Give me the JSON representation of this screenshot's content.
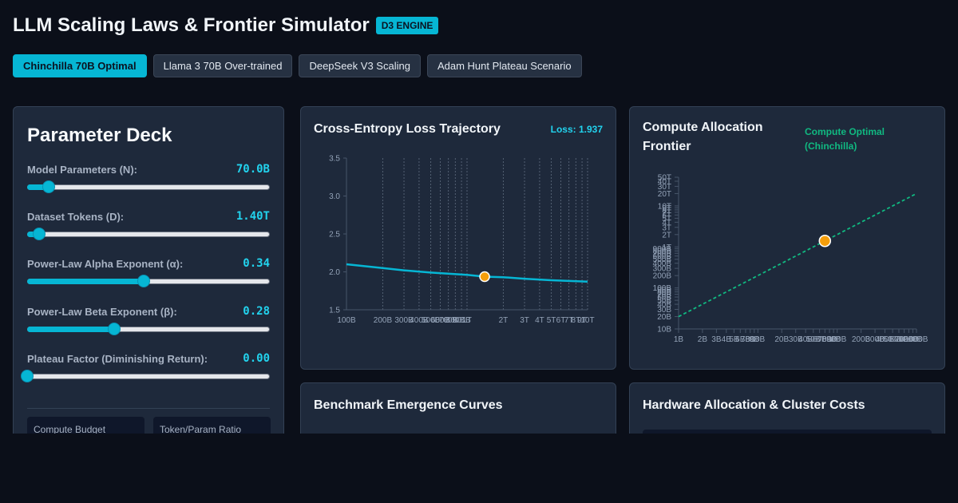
{
  "header": {
    "title": "LLM Scaling Laws & Frontier Simulator",
    "badge": "D3 ENGINE"
  },
  "scenarios": [
    {
      "label": "Chinchilla 70B Optimal",
      "active": true
    },
    {
      "label": "Llama 3 70B Over-trained",
      "active": false
    },
    {
      "label": "DeepSeek V3 Scaling",
      "active": false
    },
    {
      "label": "Adam Hunt Plateau Scenario",
      "active": false
    }
  ],
  "deck": {
    "title": "Parameter Deck",
    "params": [
      {
        "label": "Model Parameters (N):",
        "value": "70.0B",
        "position": 0.09
      },
      {
        "label": "Dataset Tokens (D):",
        "value": "1.40T",
        "position": 0.05
      },
      {
        "label": "Power-Law Alpha Exponent (α):",
        "value": "0.34",
        "position": 0.48
      },
      {
        "label": "Power-Law Beta Exponent (β):",
        "value": "0.28",
        "position": 0.36
      },
      {
        "label": "Plateau Factor (Diminishing Return):",
        "value": "0.00",
        "position": 0.0
      }
    ],
    "stats": [
      {
        "label": "Compute Budget"
      },
      {
        "label": "Token/Param Ratio"
      }
    ]
  },
  "loss_card": {
    "title": "Cross-Entropy Loss Trajectory",
    "loss_label": "Loss: 1.937"
  },
  "frontier_card": {
    "title_line1": "Compute Allocation",
    "title_line2": "Frontier",
    "optimal_line1": "Compute Optimal",
    "optimal_line2": "(Chinchilla)"
  },
  "benchmark_card": {
    "title": "Benchmark Emergence Curves"
  },
  "hardware_card": {
    "title": "Hardware Allocation & Cluster Costs"
  },
  "colors": {
    "accent": "#06b6d4",
    "optimal": "#10b981",
    "marker": "#f59e0b",
    "panel": "#1e293b",
    "background": "#0b0f19"
  },
  "chart_data": [
    {
      "type": "line",
      "title": "Cross-Entropy Loss Trajectory",
      "x_scale": "log",
      "xlim": [
        100000000000,
        10000000000000
      ],
      "ylim": [
        1.5,
        3.5
      ],
      "y_ticks": [
        1.5,
        2.0,
        2.5,
        3.0,
        3.5
      ],
      "y_tick_labels": [
        "1.5",
        "2.0",
        "2.5",
        "3.0",
        "3.5"
      ],
      "x_ticks": [
        100000000000,
        200000000000,
        300000000000,
        400000000000,
        500000000000,
        600000000000,
        700000000000,
        800000000000,
        900000000000,
        1000000000000,
        2000000000000,
        3000000000000,
        4000000000000,
        5000000000000,
        6000000000000,
        7000000000000,
        8000000000000,
        9000000000000,
        10000000000000
      ],
      "x_tick_labels": [
        "100B",
        "200B",
        "300B",
        "400B",
        "500B",
        "600B",
        "700B",
        "800B",
        "900B",
        "1T",
        "2T",
        "3T",
        "4T",
        "5T",
        "6T",
        "7T",
        "8T",
        "9T",
        "10T"
      ],
      "x_grid": "dashed vertical",
      "series": [
        {
          "x": [
            100000000000,
            200000000000,
            300000000000,
            500000000000,
            1000000000000,
            1400000000000,
            2000000000000,
            3000000000000,
            5000000000000,
            10000000000000
          ],
          "y": [
            2.1,
            2.05,
            2.02,
            1.99,
            1.96,
            1.937,
            1.93,
            1.91,
            1.89,
            1.87
          ]
        }
      ],
      "highlight": {
        "x": 1400000000000,
        "y": 1.937
      }
    },
    {
      "type": "line",
      "title": "Compute Allocation Frontier",
      "x_scale": "log",
      "y_scale": "log",
      "xlim": [
        1000000000,
        1000000000000
      ],
      "ylim": [
        10000000000,
        50000000000000
      ],
      "x_ticks": [
        1000000000,
        2000000000,
        3000000000,
        4000000000,
        5000000000,
        6000000000,
        7000000000,
        8000000000,
        9000000000,
        10000000000,
        20000000000,
        30000000000,
        40000000000,
        50000000000,
        60000000000,
        70000000000,
        80000000000,
        90000000000,
        100000000000,
        200000000000,
        300000000000,
        400000000000,
        500000000000,
        600000000000,
        700000000000,
        800000000000,
        900000000000,
        1000000000000
      ],
      "x_tick_labels": [
        "1B",
        "2B",
        "3B",
        "4B",
        "5B",
        "6B",
        "7B",
        "8B",
        "9B",
        "10B",
        "20B",
        "30B",
        "40B",
        "50B",
        "60B",
        "70B",
        "80B",
        "90B",
        "100B",
        "200B",
        "300B",
        "400B",
        "500B",
        "600B",
        "700B",
        "800B",
        "900B",
        "1000B"
      ],
      "y_ticks": [
        10000000000,
        20000000000,
        30000000000,
        40000000000,
        50000000000,
        60000000000,
        70000000000,
        80000000000,
        90000000000,
        100000000000,
        200000000000,
        300000000000,
        400000000000,
        500000000000,
        600000000000,
        700000000000,
        800000000000,
        900000000000,
        1000000000000,
        2000000000000,
        3000000000000,
        4000000000000,
        5000000000000,
        6000000000000,
        7000000000000,
        8000000000000,
        9000000000000,
        10000000000000,
        20000000000000,
        30000000000000,
        40000000000000,
        50000000000000
      ],
      "y_tick_labels": [
        "10B",
        "20B",
        "30B",
        "40B",
        "50B",
        "60B",
        "70B",
        "80B",
        "90B",
        "100B",
        "200B",
        "300B",
        "400B",
        "500B",
        "600B",
        "700B",
        "800B",
        "900B",
        "1T",
        "2T",
        "3T",
        "4T",
        "5T",
        "6T",
        "7T",
        "8T",
        "9T",
        "10T",
        "20T",
        "30T",
        "40T",
        "50T"
      ],
      "series": [
        {
          "name": "Compute Optimal (Chinchilla)",
          "style": "dashed",
          "x": [
            1000000000,
            1000000000000
          ],
          "y": [
            20000000000,
            20000000000000
          ]
        }
      ],
      "highlight": {
        "x": 70000000000,
        "y": 1400000000000
      }
    }
  ]
}
